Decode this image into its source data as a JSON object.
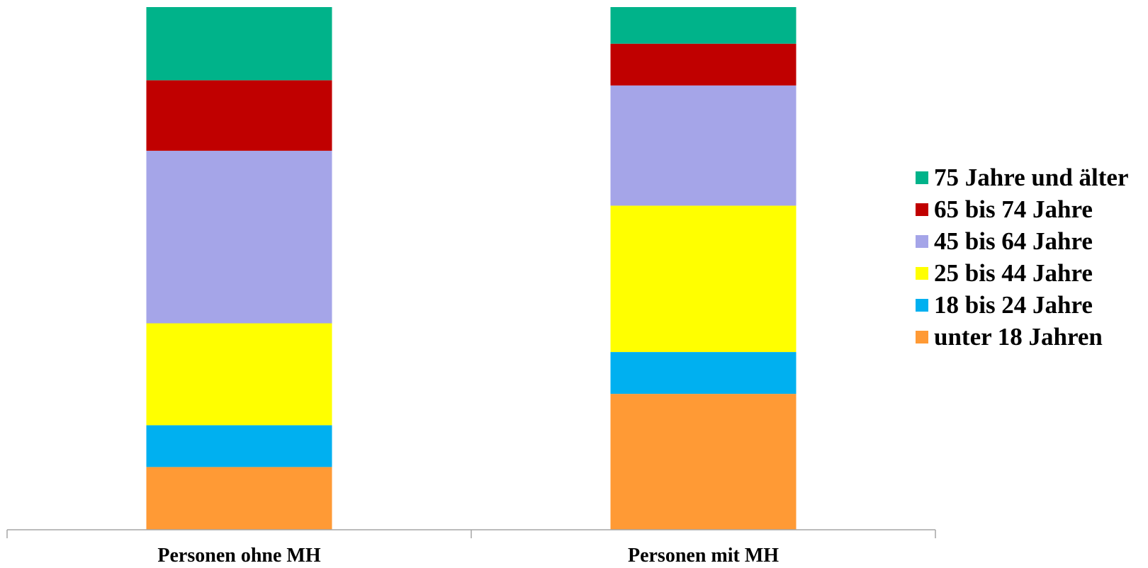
{
  "chart_data": {
    "type": "bar",
    "stacked": true,
    "normalized": true,
    "categories": [
      "Personen ohne MH",
      "Personen mit MH"
    ],
    "ylim": [
      0,
      100
    ],
    "series": [
      {
        "name": "unter 18 Jahren",
        "color": "#FF9A35",
        "values": [
          12,
          26
        ]
      },
      {
        "name": "18 bis 24 Jahre",
        "color": "#00B0F0",
        "values": [
          8,
          8
        ]
      },
      {
        "name": "25 bis 44 Jahre",
        "color": "#FFFF00",
        "values": [
          19.5,
          28
        ]
      },
      {
        "name": "45 bis 64 Jahre",
        "color": "#A5A5E8",
        "values": [
          33,
          23
        ]
      },
      {
        "name": "65 bis 74 Jahre",
        "color": "#C00000",
        "values": [
          13.5,
          8
        ]
      },
      {
        "name": "75 Jahre und älter",
        "color": "#00B38A",
        "values": [
          14,
          7
        ]
      }
    ],
    "legend_position": "right",
    "grid": false
  }
}
